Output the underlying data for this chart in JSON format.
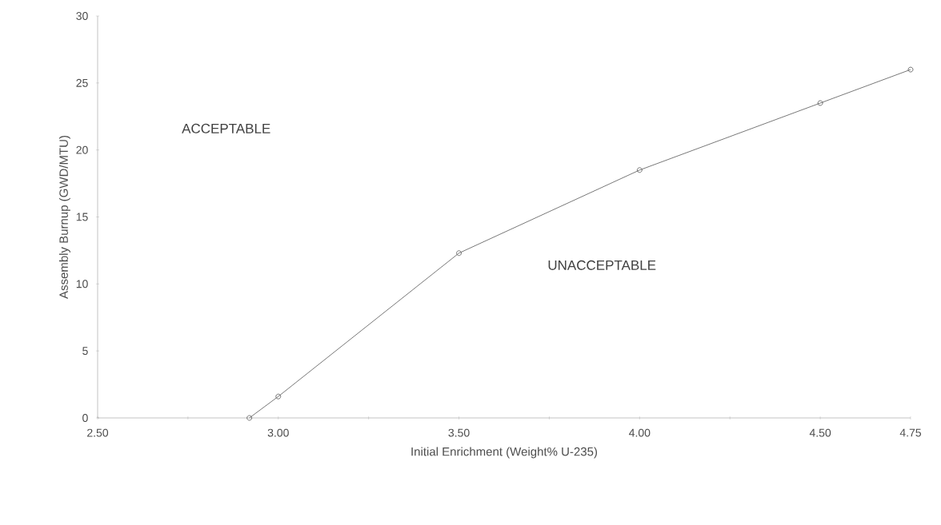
{
  "chart_data": {
    "type": "line",
    "xlabel": "Initial Enrichment (Weight% U-235)",
    "ylabel": "Assembly Burnup (GWD/MTU)",
    "x": [
      2.92,
      3.0,
      3.5,
      4.0,
      4.5,
      4.75
    ],
    "series": [
      {
        "color": "#555555",
        "values": [
          0,
          1.6,
          12.3,
          18.5,
          23.5,
          26.0
        ]
      }
    ],
    "xlim": [
      2.5,
      4.75
    ],
    "xticks": [
      {
        "value": 2.5,
        "label": "2.50"
      },
      {
        "value": 2.75,
        "label": null
      },
      {
        "value": 3.0,
        "label": "3.00"
      },
      {
        "value": 3.25,
        "label": null
      },
      {
        "value": 3.5,
        "label": "3.50"
      },
      {
        "value": 3.75,
        "label": null
      },
      {
        "value": 4.0,
        "label": "4.00"
      },
      {
        "value": 4.25,
        "label": null
      },
      {
        "value": 4.5,
        "label": "4.50"
      },
      {
        "value": 4.75,
        "label": "4.75"
      }
    ],
    "ylim": [
      0,
      30
    ],
    "yticks": [
      0,
      5,
      10,
      15,
      20,
      25,
      30
    ],
    "marker": "circle",
    "line_style": "solid",
    "grid": false,
    "annotations": [
      "ACCEPTABLE",
      "UNACCEPTABLE"
    ]
  }
}
